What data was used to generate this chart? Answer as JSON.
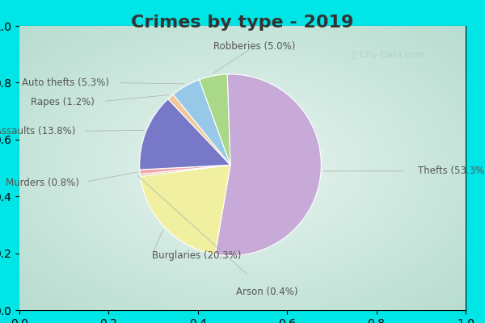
{
  "title": "Crimes by type - 2019",
  "labels": [
    "Thefts",
    "Burglaries",
    "Arson",
    "Murders",
    "Assaults",
    "Rapes",
    "Auto thefts",
    "Robberies"
  ],
  "percentages": [
    53.3,
    20.3,
    0.4,
    0.8,
    13.8,
    1.2,
    5.3,
    5.0
  ],
  "colors": [
    "#c8aad8",
    "#f0f0a0",
    "#e8c8a0",
    "#f0a8b0",
    "#7878c8",
    "#f0c898",
    "#98c8e8",
    "#a8d888"
  ],
  "border_color": "#00e5e5",
  "bg_color_center": "#e8f5ee",
  "bg_color_edge": "#c8e8e0",
  "title_fontsize": 16,
  "label_fontsize": 8.5,
  "title_color": "#333333",
  "watermark_color": "#aacccc",
  "border_width": 8
}
